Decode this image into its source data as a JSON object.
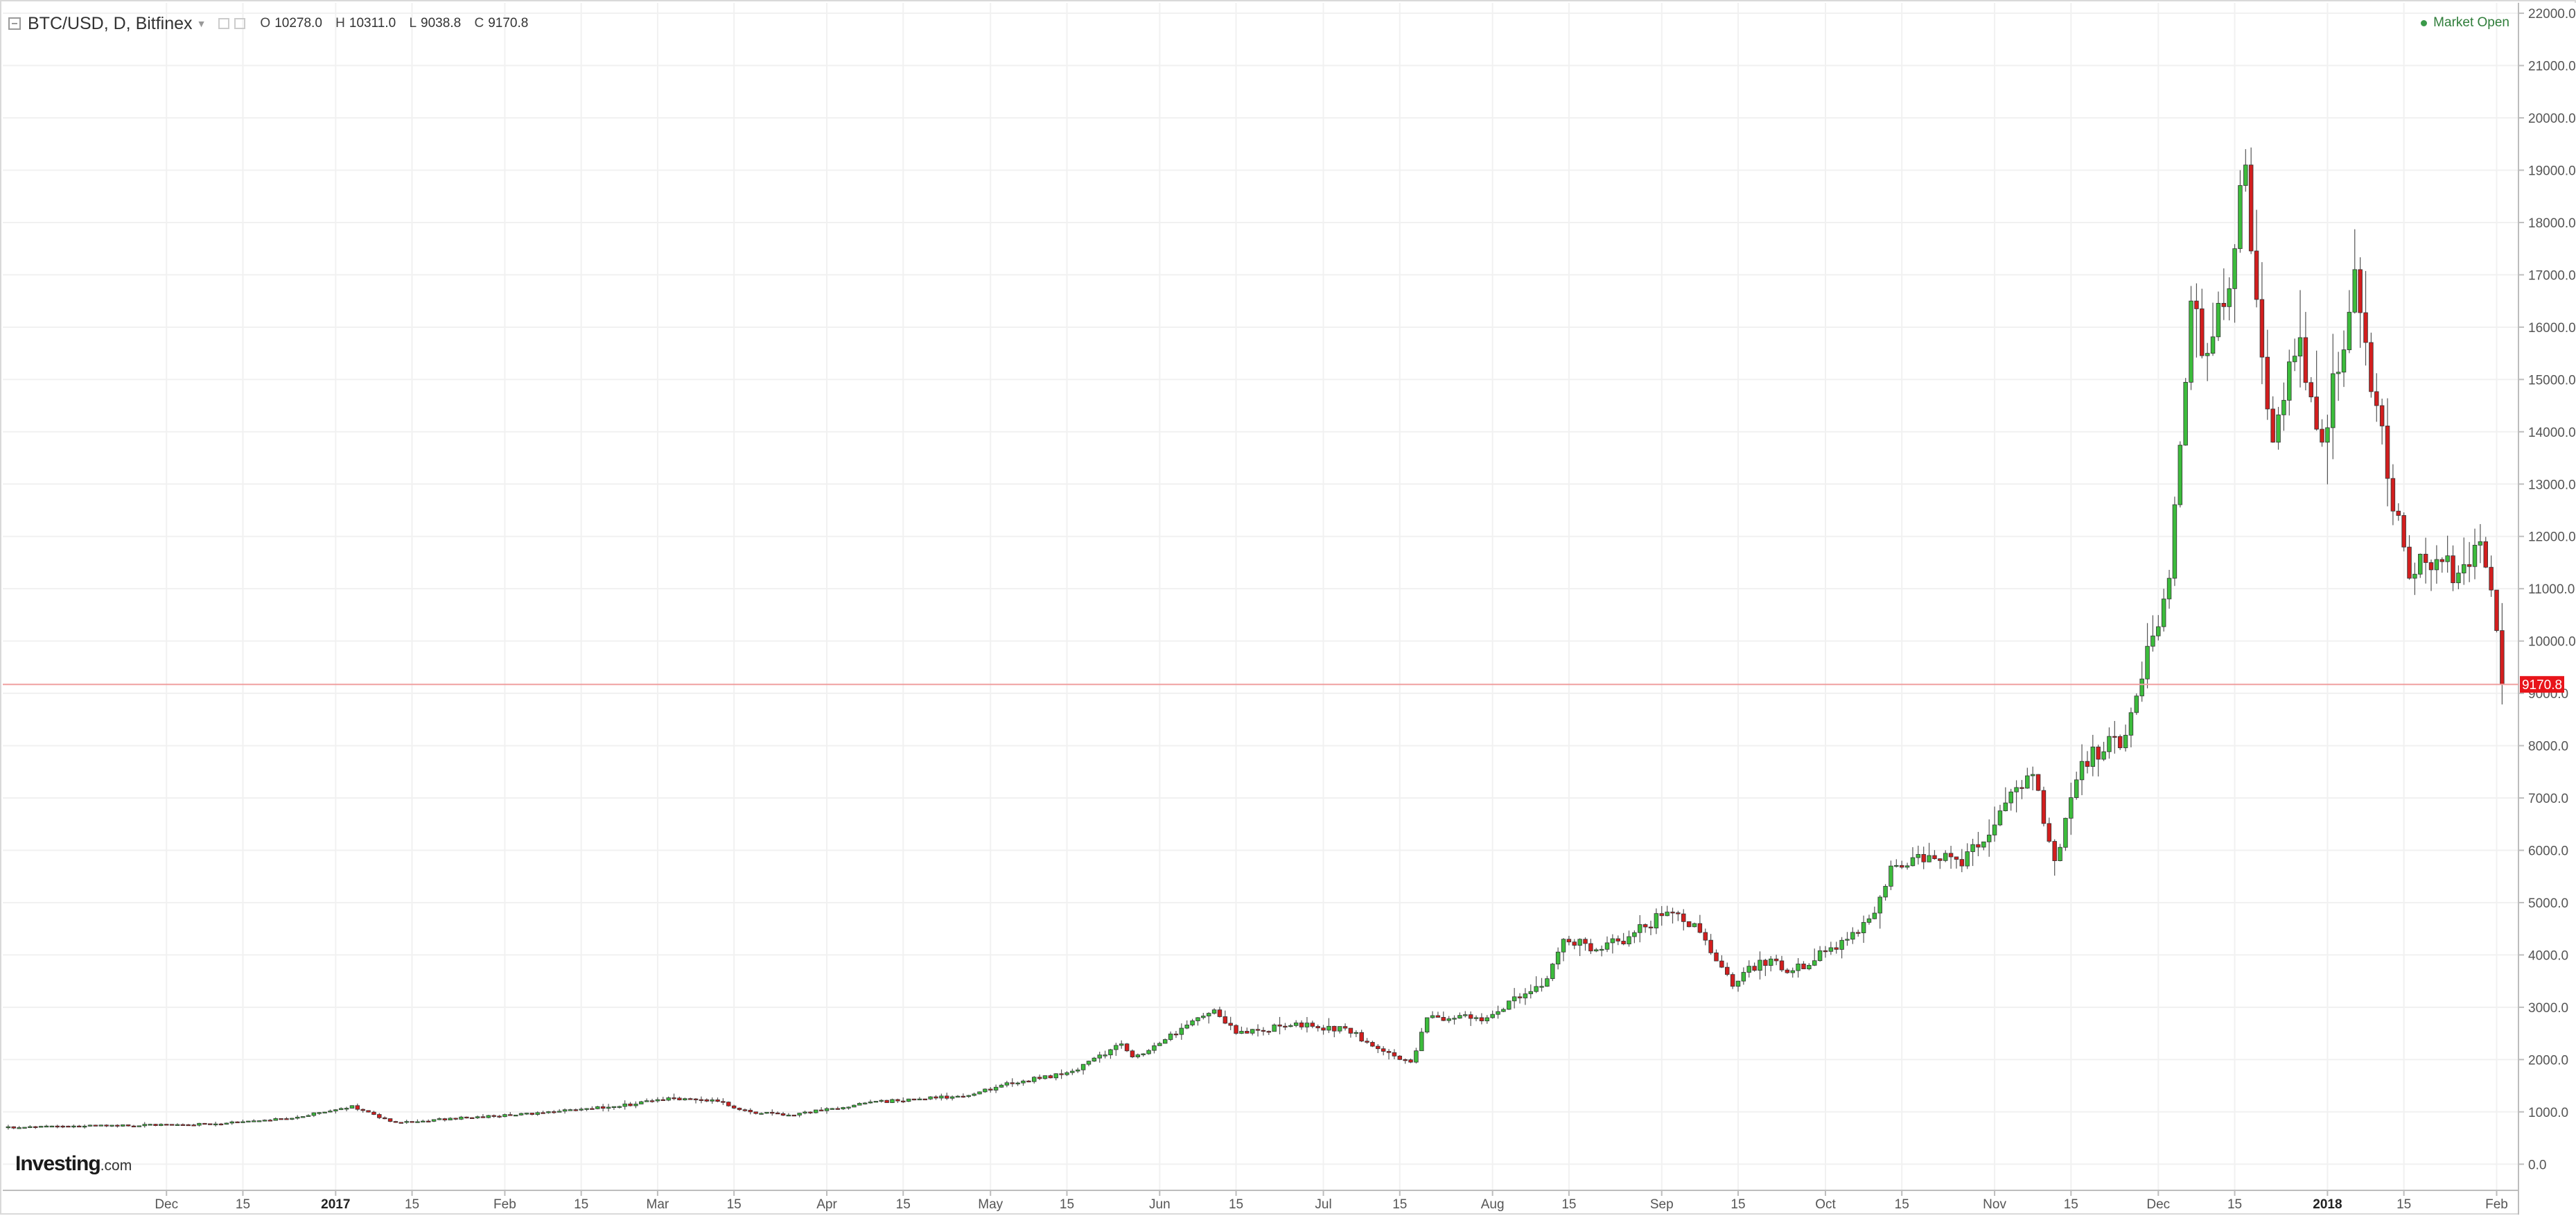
{
  "header": {
    "title": "BTC/USD, D, Bitfinex",
    "ohlc": [
      {
        "key": "O",
        "value": "10278.0"
      },
      {
        "key": "H",
        "value": "10311.0"
      },
      {
        "key": "L",
        "value": "9038.8"
      },
      {
        "key": "C",
        "value": "9170.8"
      }
    ],
    "market_status": "Market Open"
  },
  "brand": {
    "name": "Investing",
    "suffix": ".com"
  },
  "colors": {
    "up": "#3cbc3c",
    "down": "#d21e1e",
    "price_line": "#f0a0a0",
    "price_label_bg": "#e8141a"
  },
  "chart_data": {
    "type": "candlestick",
    "symbol": "BTC/USD",
    "interval": "D",
    "exchange": "Bitfinex",
    "y_ticks": [
      0,
      1000,
      2000,
      3000,
      4000,
      5000,
      6000,
      7000,
      8000,
      9000,
      10000,
      11000,
      12000,
      13000,
      14000,
      15000,
      16000,
      17000,
      18000,
      19000,
      20000,
      21000,
      22000
    ],
    "ylim": [
      -500,
      22200
    ],
    "x_range": [
      "2016-11-01",
      "2018-02-05"
    ],
    "x_ticks": [
      {
        "date": "2016-12-01",
        "label": "Dec",
        "bold": false
      },
      {
        "date": "2016-12-15",
        "label": "15",
        "bold": false
      },
      {
        "date": "2017-01-01",
        "label": "2017",
        "bold": true
      },
      {
        "date": "2017-01-15",
        "label": "15",
        "bold": false
      },
      {
        "date": "2017-02-01",
        "label": "Feb",
        "bold": false
      },
      {
        "date": "2017-02-15",
        "label": "15",
        "bold": false
      },
      {
        "date": "2017-03-01",
        "label": "Mar",
        "bold": false
      },
      {
        "date": "2017-03-15",
        "label": "15",
        "bold": false
      },
      {
        "date": "2017-04-01",
        "label": "Apr",
        "bold": false
      },
      {
        "date": "2017-04-15",
        "label": "15",
        "bold": false
      },
      {
        "date": "2017-05-01",
        "label": "May",
        "bold": false
      },
      {
        "date": "2017-05-15",
        "label": "15",
        "bold": false
      },
      {
        "date": "2017-06-01",
        "label": "Jun",
        "bold": false
      },
      {
        "date": "2017-06-15",
        "label": "15",
        "bold": false
      },
      {
        "date": "2017-07-01",
        "label": "Jul",
        "bold": false
      },
      {
        "date": "2017-07-15",
        "label": "15",
        "bold": false
      },
      {
        "date": "2017-08-01",
        "label": "Aug",
        "bold": false
      },
      {
        "date": "2017-08-15",
        "label": "15",
        "bold": false
      },
      {
        "date": "2017-09-01",
        "label": "Sep",
        "bold": false
      },
      {
        "date": "2017-09-15",
        "label": "15",
        "bold": false
      },
      {
        "date": "2017-10-01",
        "label": "Oct",
        "bold": false
      },
      {
        "date": "2017-10-15",
        "label": "15",
        "bold": false
      },
      {
        "date": "2017-11-01",
        "label": "Nov",
        "bold": false
      },
      {
        "date": "2017-11-15",
        "label": "15",
        "bold": false
      },
      {
        "date": "2017-12-01",
        "label": "Dec",
        "bold": false
      },
      {
        "date": "2017-12-15",
        "label": "15",
        "bold": false
      },
      {
        "date": "2018-01-01",
        "label": "2018",
        "bold": true
      },
      {
        "date": "2018-01-15",
        "label": "15",
        "bold": false
      },
      {
        "date": "2018-02-01",
        "label": "Feb",
        "bold": false
      }
    ],
    "last_price": 9170.8,
    "last_price_label": "9170.8",
    "grid": true,
    "close_anchors": [
      [
        "2016-11-01",
        700
      ],
      [
        "2016-11-20",
        735
      ],
      [
        "2016-12-10",
        770
      ],
      [
        "2016-12-25",
        900
      ],
      [
        "2017-01-04",
        1120
      ],
      [
        "2017-01-12",
        800
      ],
      [
        "2017-01-25",
        890
      ],
      [
        "2017-02-10",
        1000
      ],
      [
        "2017-02-25",
        1150
      ],
      [
        "2017-03-03",
        1270
      ],
      [
        "2017-03-12",
        1200
      ],
      [
        "2017-03-18",
        1000
      ],
      [
        "2017-03-25",
        940
      ],
      [
        "2017-04-08",
        1170
      ],
      [
        "2017-04-25",
        1300
      ],
      [
        "2017-05-05",
        1550
      ],
      [
        "2017-05-15",
        1750
      ],
      [
        "2017-05-25",
        2300
      ],
      [
        "2017-05-27",
        2050
      ],
      [
        "2017-06-05",
        2600
      ],
      [
        "2017-06-11",
        2950
      ],
      [
        "2017-06-15",
        2500
      ],
      [
        "2017-06-25",
        2650
      ],
      [
        "2017-07-05",
        2600
      ],
      [
        "2017-07-15",
        2000
      ],
      [
        "2017-07-17",
        1950
      ],
      [
        "2017-07-20",
        2800
      ],
      [
        "2017-07-31",
        2800
      ],
      [
        "2017-08-05",
        3200
      ],
      [
        "2017-08-10",
        3400
      ],
      [
        "2017-08-14",
        4300
      ],
      [
        "2017-08-20",
        4100
      ],
      [
        "2017-08-26",
        4350
      ],
      [
        "2017-09-01",
        4750
      ],
      [
        "2017-09-07",
        4600
      ],
      [
        "2017-09-14",
        3400
      ],
      [
        "2017-09-15",
        3500
      ],
      [
        "2017-09-19",
        3900
      ],
      [
        "2017-09-25",
        3700
      ],
      [
        "2017-10-05",
        4300
      ],
      [
        "2017-10-10",
        4800
      ],
      [
        "2017-10-13",
        5700
      ],
      [
        "2017-10-20",
        5900
      ],
      [
        "2017-10-26",
        5700
      ],
      [
        "2017-11-05",
        7200
      ],
      [
        "2017-11-08",
        7450
      ],
      [
        "2017-11-12",
        5800
      ],
      [
        "2017-11-17",
        7700
      ],
      [
        "2017-11-25",
        8200
      ],
      [
        "2017-11-29",
        9900
      ],
      [
        "2017-12-03",
        11200
      ],
      [
        "2017-12-07",
        16500
      ],
      [
        "2017-12-10",
        15500
      ],
      [
        "2017-12-15",
        17500
      ],
      [
        "2017-12-17",
        19100
      ],
      [
        "2017-12-22",
        13800
      ],
      [
        "2017-12-27",
        15800
      ],
      [
        "2017-12-31",
        13800
      ],
      [
        "2018-01-06",
        17100
      ],
      [
        "2018-01-10",
        14500
      ],
      [
        "2018-01-16",
        11200
      ],
      [
        "2018-01-19",
        11500
      ],
      [
        "2018-01-25",
        11300
      ],
      [
        "2018-01-29",
        11900
      ],
      [
        "2018-02-01",
        10200
      ],
      [
        "2018-02-02",
        9170.8
      ]
    ]
  }
}
